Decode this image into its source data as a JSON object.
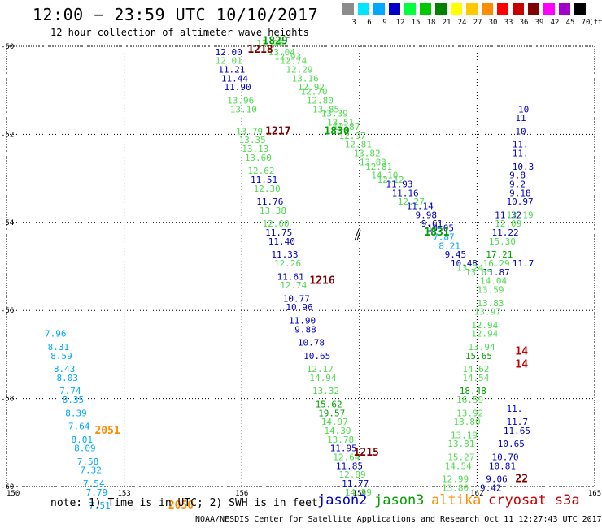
{
  "header": {
    "title": "12:00 − 23:59 UTC 10/10/2017",
    "subtitle": "12 hour collection of altimeter wave heights"
  },
  "legend": {
    "unit": "(ft)",
    "bins": [
      {
        "label": "3",
        "color": "#8c8c8c"
      },
      {
        "label": "6",
        "color": "#00e5ff"
      },
      {
        "label": "9",
        "color": "#00a8ff"
      },
      {
        "label": "12",
        "color": "#0000c8"
      },
      {
        "label": "15",
        "color": "#00ff3c"
      },
      {
        "label": "18",
        "color": "#00c800"
      },
      {
        "label": "21",
        "color": "#008200"
      },
      {
        "label": "24",
        "color": "#ffff00"
      },
      {
        "label": "27",
        "color": "#ffc800"
      },
      {
        "label": "30",
        "color": "#ff8c00"
      },
      {
        "label": "33",
        "color": "#ff0000"
      },
      {
        "label": "36",
        "color": "#c80000"
      },
      {
        "label": "39",
        "color": "#820000"
      },
      {
        "label": "42",
        "color": "#ff00ff"
      },
      {
        "label": "45",
        "color": "#a000c8"
      },
      {
        "label": "70",
        "color": "#000000"
      }
    ]
  },
  "axes": {
    "x_ticks": [
      "150",
      "153",
      "156",
      "159",
      "162",
      "165"
    ],
    "y_ticks": [
      "-50",
      "-52",
      "-54",
      "-56",
      "-58",
      "-60"
    ]
  },
  "colors": {
    "jason2": "#0000c8",
    "jason3": "#00a000",
    "altika": "#ff8c00",
    "cryosat": "#c80000",
    "low": "#00a8ff",
    "mid": "#50dc50",
    "orbit": "#800000"
  },
  "map_data": {
    "track_points": [
      {
        "lon": 153.5,
        "lat": -50.0,
        "v": "12.26",
        "c": "mid"
      },
      {
        "lon": 153.9,
        "lat": -50.2,
        "v": "13.04",
        "c": "mid"
      },
      {
        "lon": 154.1,
        "lat": -50.3,
        "v": "12.93",
        "c": "mid"
      },
      {
        "lon": 154.3,
        "lat": -50.4,
        "v": "12.74",
        "c": "mid"
      },
      {
        "lon": 154.5,
        "lat": -50.6,
        "v": "12.29",
        "c": "mid"
      },
      {
        "lon": 154.7,
        "lat": -50.8,
        "v": "13.16",
        "c": "mid"
      },
      {
        "lon": 154.9,
        "lat": -51.0,
        "v": "12.92",
        "c": "mid"
      },
      {
        "lon": 155.0,
        "lat": -51.1,
        "v": "12.70",
        "c": "mid"
      },
      {
        "lon": 155.2,
        "lat": -51.3,
        "v": "12.80",
        "c": "mid"
      },
      {
        "lon": 155.4,
        "lat": -51.5,
        "v": "13.85",
        "c": "mid"
      },
      {
        "lon": 155.7,
        "lat": -51.6,
        "v": "13.39",
        "c": "mid"
      },
      {
        "lon": 155.9,
        "lat": -51.8,
        "v": "13.51",
        "c": "mid"
      },
      {
        "lon": 156.1,
        "lat": -51.9,
        "v": "12.87",
        "c": "mid"
      },
      {
        "lon": 156.3,
        "lat": -52.1,
        "v": "12.97",
        "c": "mid"
      },
      {
        "lon": 156.5,
        "lat": -52.3,
        "v": "12.81",
        "c": "mid"
      },
      {
        "lon": 156.8,
        "lat": -52.5,
        "v": "13.82",
        "c": "mid"
      },
      {
        "lon": 157.0,
        "lat": -52.7,
        "v": "13.83",
        "c": "mid"
      },
      {
        "lon": 157.2,
        "lat": -52.8,
        "v": "12.81",
        "c": "mid"
      },
      {
        "lon": 157.4,
        "lat": -53.0,
        "v": "14.10",
        "c": "mid"
      },
      {
        "lon": 157.6,
        "lat": -53.1,
        "v": "12.12",
        "c": "mid"
      },
      {
        "lon": 157.9,
        "lat": -53.2,
        "v": "11.93",
        "c": "jason2"
      },
      {
        "lon": 158.1,
        "lat": -53.4,
        "v": "11.16",
        "c": "jason2"
      },
      {
        "lon": 158.3,
        "lat": -53.6,
        "v": "12.27",
        "c": "mid"
      },
      {
        "lon": 158.6,
        "lat": -53.7,
        "v": "11.14",
        "c": "jason2"
      },
      {
        "lon": 158.9,
        "lat": -53.9,
        "v": "9.98",
        "c": "jason2"
      },
      {
        "lon": 159.1,
        "lat": -54.1,
        "v": "9.61",
        "c": "jason2"
      },
      {
        "lon": 159.3,
        "lat": -54.2,
        "v": "10.05",
        "c": "jason2"
      },
      {
        "lon": 159.5,
        "lat": -54.4,
        "v": "7.87",
        "c": "low"
      },
      {
        "lon": 159.7,
        "lat": -54.6,
        "v": "8.21",
        "c": "low"
      },
      {
        "lon": 159.9,
        "lat": -54.8,
        "v": "9.45",
        "c": "jason2"
      },
      {
        "lon": 160.1,
        "lat": -55.0,
        "v": "10.48",
        "c": "jason2"
      },
      {
        "lon": 160.3,
        "lat": -55.1,
        "v": "13.24",
        "c": "mid"
      },
      {
        "lon": 160.6,
        "lat": -55.2,
        "v": "13.05",
        "c": "mid"
      },
      {
        "lon": 152.1,
        "lat": -50.2,
        "v": "12.00",
        "c": "jason2"
      },
      {
        "lon": 152.1,
        "lat": -50.4,
        "v": "12.01",
        "c": "mid"
      },
      {
        "lon": 152.2,
        "lat": -50.6,
        "v": "11.21",
        "c": "jason2"
      },
      {
        "lon": 152.3,
        "lat": -50.8,
        "v": "11.44",
        "c": "jason2"
      },
      {
        "lon": 152.4,
        "lat": -51.0,
        "v": "11.90",
        "c": "jason2"
      },
      {
        "lon": 152.5,
        "lat": -51.3,
        "v": "13.96",
        "c": "mid"
      },
      {
        "lon": 152.6,
        "lat": -51.5,
        "v": "13.10",
        "c": "mid"
      },
      {
        "lon": 152.8,
        "lat": -52.0,
        "v": "13.79",
        "c": "mid"
      },
      {
        "lon": 152.9,
        "lat": -52.2,
        "v": "13.35",
        "c": "mid"
      },
      {
        "lon": 153.0,
        "lat": -52.4,
        "v": "13.13",
        "c": "mid"
      },
      {
        "lon": 153.1,
        "lat": -52.6,
        "v": "13.60",
        "c": "mid"
      },
      {
        "lon": 153.2,
        "lat": -52.9,
        "v": "12.62",
        "c": "mid"
      },
      {
        "lon": 153.3,
        "lat": -53.1,
        "v": "11.51",
        "c": "jason2"
      },
      {
        "lon": 153.4,
        "lat": -53.3,
        "v": "12.30",
        "c": "mid"
      },
      {
        "lon": 153.5,
        "lat": -53.6,
        "v": "11.76",
        "c": "jason2"
      },
      {
        "lon": 153.6,
        "lat": -53.8,
        "v": "13.38",
        "c": "mid"
      },
      {
        "lon": 153.7,
        "lat": -54.1,
        "v": "12.60",
        "c": "mid"
      },
      {
        "lon": 153.8,
        "lat": -54.3,
        "v": "11.75",
        "c": "jason2"
      },
      {
        "lon": 153.9,
        "lat": -54.5,
        "v": "11.40",
        "c": "jason2"
      },
      {
        "lon": 154.0,
        "lat": -54.8,
        "v": "11.33",
        "c": "jason2"
      },
      {
        "lon": 154.1,
        "lat": -55.0,
        "v": "12.26",
        "c": "mid"
      },
      {
        "lon": 154.2,
        "lat": -55.3,
        "v": "11.61",
        "c": "jason2"
      },
      {
        "lon": 154.3,
        "lat": -55.5,
        "v": "12.74",
        "c": "mid"
      },
      {
        "lon": 154.4,
        "lat": -55.8,
        "v": "10.77",
        "c": "jason2"
      },
      {
        "lon": 154.5,
        "lat": -56.0,
        "v": "10.96",
        "c": "jason2"
      },
      {
        "lon": 154.6,
        "lat": -56.3,
        "v": "11.90",
        "c": "jason2"
      },
      {
        "lon": 154.8,
        "lat": -56.5,
        "v": "9.88",
        "c": "jason2"
      },
      {
        "lon": 154.9,
        "lat": -56.8,
        "v": "10.78",
        "c": "jason2"
      },
      {
        "lon": 155.1,
        "lat": -57.1,
        "v": "10.65",
        "c": "jason2"
      },
      {
        "lon": 155.2,
        "lat": -57.4,
        "v": "12.17",
        "c": "mid"
      },
      {
        "lon": 155.3,
        "lat": -57.6,
        "v": "14.94",
        "c": "mid"
      },
      {
        "lon": 155.4,
        "lat": -57.9,
        "v": "13.32",
        "c": "mid"
      },
      {
        "lon": 155.5,
        "lat": -58.2,
        "v": "15.62",
        "c": "jason3"
      },
      {
        "lon": 155.6,
        "lat": -58.4,
        "v": "19.57",
        "c": "jason3"
      },
      {
        "lon": 155.7,
        "lat": -58.6,
        "v": "14.97",
        "c": "mid"
      },
      {
        "lon": 155.8,
        "lat": -58.8,
        "v": "14.39",
        "c": "mid"
      },
      {
        "lon": 155.9,
        "lat": -59.0,
        "v": "13.78",
        "c": "mid"
      },
      {
        "lon": 156.0,
        "lat": -59.2,
        "v": "11.95",
        "c": "jason2"
      },
      {
        "lon": 156.1,
        "lat": -59.4,
        "v": "12.64",
        "c": "mid"
      },
      {
        "lon": 156.2,
        "lat": -59.6,
        "v": "11.85",
        "c": "jason2"
      },
      {
        "lon": 156.3,
        "lat": -59.8,
        "v": "12.89",
        "c": "mid"
      },
      {
        "lon": 156.4,
        "lat": -60.0,
        "v": "11.77",
        "c": "jason2"
      },
      {
        "lon": 156.5,
        "lat": -60.2,
        "v": "14.89",
        "c": "mid"
      },
      {
        "lon": 146.3,
        "lat": -56.6,
        "v": "7.96",
        "c": "low"
      },
      {
        "lon": 146.4,
        "lat": -56.9,
        "v": "8.31",
        "c": "low"
      },
      {
        "lon": 146.5,
        "lat": -57.1,
        "v": "8.59",
        "c": "low"
      },
      {
        "lon": 146.6,
        "lat": -57.4,
        "v": "8.43",
        "c": "low"
      },
      {
        "lon": 146.7,
        "lat": -57.6,
        "v": "8.03",
        "c": "low"
      },
      {
        "lon": 146.8,
        "lat": -57.9,
        "v": "7.74",
        "c": "low"
      },
      {
        "lon": 146.9,
        "lat": -58.1,
        "v": "8.35",
        "c": "low"
      },
      {
        "lon": 147.0,
        "lat": -58.4,
        "v": "8.39",
        "c": "low"
      },
      {
        "lon": 147.1,
        "lat": -58.7,
        "v": "7.64",
        "c": "low"
      },
      {
        "lon": 147.2,
        "lat": -59.0,
        "v": "8.01",
        "c": "low"
      },
      {
        "lon": 147.3,
        "lat": -59.2,
        "v": "8.09",
        "c": "low"
      },
      {
        "lon": 147.4,
        "lat": -59.5,
        "v": "7.58",
        "c": "low"
      },
      {
        "lon": 147.5,
        "lat": -59.7,
        "v": "7.32",
        "c": "low"
      },
      {
        "lon": 147.6,
        "lat": -60.0,
        "v": "7.54",
        "c": "low"
      },
      {
        "lon": 147.7,
        "lat": -60.2,
        "v": "7.79",
        "c": "low"
      },
      {
        "lon": 147.8,
        "lat": -60.5,
        "v": "7.51",
        "c": "low"
      },
      {
        "lon": 161.6,
        "lat": -54.1,
        "v": "12.09",
        "c": "mid"
      },
      {
        "lon": 161.6,
        "lat": -53.9,
        "v": "11.32",
        "c": "jason2"
      },
      {
        "lon": 161.5,
        "lat": -54.3,
        "v": "11.22",
        "c": "jason2"
      },
      {
        "lon": 161.4,
        "lat": -54.5,
        "v": "15.30",
        "c": "mid"
      },
      {
        "lon": 161.3,
        "lat": -54.8,
        "v": "17.21",
        "c": "jason3"
      },
      {
        "lon": 161.2,
        "lat": -55.0,
        "v": "16.29",
        "c": "mid"
      },
      {
        "lon": 161.2,
        "lat": -55.2,
        "v": "11.87",
        "c": "jason2"
      },
      {
        "lon": 161.1,
        "lat": -55.4,
        "v": "14.04",
        "c": "mid"
      },
      {
        "lon": 161.0,
        "lat": -55.6,
        "v": "13.59",
        "c": "mid"
      },
      {
        "lon": 161.0,
        "lat": -55.9,
        "v": "13.83",
        "c": "mid"
      },
      {
        "lon": 160.9,
        "lat": -56.1,
        "v": "13.97",
        "c": "mid"
      },
      {
        "lon": 160.8,
        "lat": -56.4,
        "v": "12.94",
        "c": "mid"
      },
      {
        "lon": 160.8,
        "lat": -56.6,
        "v": "12.94",
        "c": "mid"
      },
      {
        "lon": 160.7,
        "lat": -56.9,
        "v": "13.94",
        "c": "mid"
      },
      {
        "lon": 160.6,
        "lat": -57.1,
        "v": "15.65",
        "c": "jason3"
      },
      {
        "lon": 160.5,
        "lat": -57.4,
        "v": "14.62",
        "c": "mid"
      },
      {
        "lon": 160.5,
        "lat": -57.6,
        "v": "14.54",
        "c": "mid"
      },
      {
        "lon": 160.4,
        "lat": -57.9,
        "v": "18.48",
        "c": "jason3"
      },
      {
        "lon": 160.3,
        "lat": -58.1,
        "v": "16.59",
        "c": "mid"
      },
      {
        "lon": 160.3,
        "lat": -58.4,
        "v": "13.92",
        "c": "mid"
      },
      {
        "lon": 160.2,
        "lat": -58.6,
        "v": "13.80",
        "c": "mid"
      },
      {
        "lon": 160.1,
        "lat": -58.9,
        "v": "13.19",
        "c": "mid"
      },
      {
        "lon": 160.0,
        "lat": -59.1,
        "v": "13.81",
        "c": "mid"
      },
      {
        "lon": 160.0,
        "lat": -59.4,
        "v": "15.27",
        "c": "mid"
      },
      {
        "lon": 159.9,
        "lat": -59.6,
        "v": "14.54",
        "c": "mid"
      },
      {
        "lon": 159.8,
        "lat": -59.9,
        "v": "12.99",
        "c": "mid"
      },
      {
        "lon": 159.8,
        "lat": -60.1,
        "v": "13.80",
        "c": "mid"
      },
      {
        "lon": 162.2,
        "lat": -55.0,
        "v": "11.7",
        "c": "jason2"
      },
      {
        "lon": 162.0,
        "lat": -58.3,
        "v": "11.",
        "c": "jason2"
      },
      {
        "lon": 162.0,
        "lat": -58.6,
        "v": "11.7",
        "c": "jason2"
      },
      {
        "lon": 161.9,
        "lat": -58.8,
        "v": "11.65",
        "c": "jason2"
      },
      {
        "lon": 161.7,
        "lat": -59.1,
        "v": "10.65",
        "c": "jason2"
      },
      {
        "lon": 161.5,
        "lat": -59.4,
        "v": "10.70",
        "c": "jason2"
      },
      {
        "lon": 161.4,
        "lat": -59.6,
        "v": "10.81",
        "c": "jason2"
      },
      {
        "lon": 161.3,
        "lat": -59.9,
        "v": "9.06",
        "c": "jason2"
      },
      {
        "lon": 161.1,
        "lat": -60.1,
        "v": "9.42",
        "c": "jason2"
      },
      {
        "lon": 162.4,
        "lat": -51.5,
        "v": "10",
        "c": "jason2"
      },
      {
        "lon": 162.3,
        "lat": -51.7,
        "v": "11",
        "c": "jason2"
      },
      {
        "lon": 162.3,
        "lat": -52.0,
        "v": "10",
        "c": "jason2"
      },
      {
        "lon": 162.2,
        "lat": -52.3,
        "v": "11.",
        "c": "jason2"
      },
      {
        "lon": 162.2,
        "lat": -52.5,
        "v": "11.",
        "c": "jason2"
      },
      {
        "lon": 162.2,
        "lat": -52.8,
        "v": "10.3",
        "c": "jason2"
      },
      {
        "lon": 162.1,
        "lat": -53.0,
        "v": "9.8",
        "c": "jason2"
      },
      {
        "lon": 162.1,
        "lat": -53.2,
        "v": "9.2",
        "c": "jason2"
      },
      {
        "lon": 162.1,
        "lat": -53.4,
        "v": "9.18",
        "c": "jason2"
      },
      {
        "lon": 162.0,
        "lat": -53.6,
        "v": "10.97",
        "c": "jason2"
      },
      {
        "lon": 162.0,
        "lat": -53.9,
        "v": "12.19",
        "c": "mid"
      }
    ],
    "orbit_labels": [
      {
        "lon": 153.7,
        "lat": -49.95,
        "v": "1829",
        "c": "jason3"
      },
      {
        "lon": 155.8,
        "lat": -52.0,
        "v": "1830",
        "c": "jason3"
      },
      {
        "lon": 159.2,
        "lat": -54.3,
        "v": "1831",
        "c": "jason3"
      },
      {
        "lon": 153.2,
        "lat": -50.15,
        "v": "1218",
        "c": "orbit"
      },
      {
        "lon": 153.8,
        "lat": -52.0,
        "v": "1217",
        "c": "orbit"
      },
      {
        "lon": 155.3,
        "lat": -55.4,
        "v": "1216",
        "c": "orbit"
      },
      {
        "lon": 156.8,
        "lat": -59.3,
        "v": "1215",
        "c": "orbit"
      },
      {
        "lon": 148.0,
        "lat": -58.8,
        "v": "2051",
        "c": "altika"
      },
      {
        "lon": 150.5,
        "lat": -60.5,
        "v": "2050",
        "c": "altika"
      },
      {
        "lon": 162.3,
        "lat": -57.0,
        "v": "14",
        "c": "cryosat"
      },
      {
        "lon": 162.3,
        "lat": -57.3,
        "v": "14",
        "c": "cryosat"
      },
      {
        "lon": 162.3,
        "lat": -59.9,
        "v": "22",
        "c": "orbit"
      }
    ]
  },
  "footer": {
    "note": "note: 1) Time is in UTC; 2) SWH is in feet",
    "sat_jason2": "jason2",
    "sat_jason3": "jason3",
    "sat_altika": "altika",
    "sat_cryosat": "cryosat s3a",
    "credit": "NOAA/NESDIS Center for Satellite Applications and Research    Oct 11 12:27:43 UTC 2017"
  }
}
